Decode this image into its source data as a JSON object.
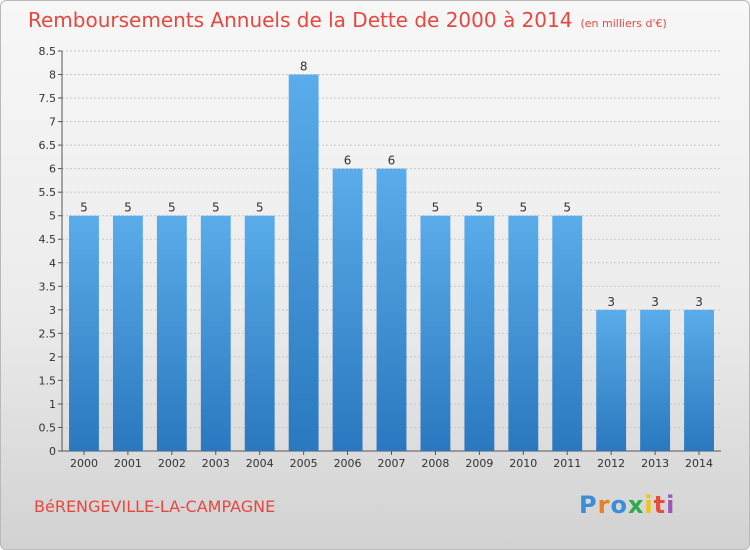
{
  "header": {
    "title": "Remboursements Annuels de la Dette de 2000 à 2014",
    "unit": "(en milliers d'€)"
  },
  "footer": {
    "commune": "BéRENGEVILLE-LA-CAMPAGNE",
    "logo": "Proxiti"
  },
  "colors": {
    "title": "#e8473f",
    "bar_top": "#5aacea",
    "bar_bottom": "#2a78bf",
    "grid": "#c8c8c8"
  },
  "chart_data": {
    "type": "bar",
    "title": "Remboursements Annuels de la Dette de 2000 à 2014",
    "xlabel": "",
    "ylabel": "",
    "ylim": [
      0,
      8.5
    ],
    "yticks": [
      0,
      0.5,
      1,
      1.5,
      2,
      2.5,
      3,
      3.5,
      4,
      4.5,
      5,
      5.5,
      6,
      6.5,
      7,
      7.5,
      8,
      8.5
    ],
    "ytick_labels": [
      "0",
      "0.5",
      "1",
      "1.5",
      "2",
      "2.5",
      "3",
      "3.5",
      "4",
      "4.5",
      "5",
      "5.5",
      "6",
      "6.5",
      "7",
      "7.5",
      "8",
      "8.5"
    ],
    "grid": true,
    "categories": [
      "2000",
      "2001",
      "2002",
      "2003",
      "2004",
      "2005",
      "2006",
      "2007",
      "2008",
      "2009",
      "2010",
      "2011",
      "2012",
      "2013",
      "2014"
    ],
    "values": [
      5,
      5,
      5,
      5,
      5,
      8,
      6,
      6,
      5,
      5,
      5,
      5,
      3,
      3,
      3
    ],
    "data_labels": [
      "5",
      "5",
      "5",
      "5",
      "5",
      "8",
      "6",
      "6",
      "5",
      "5",
      "5",
      "5",
      "3",
      "3",
      "3"
    ]
  }
}
